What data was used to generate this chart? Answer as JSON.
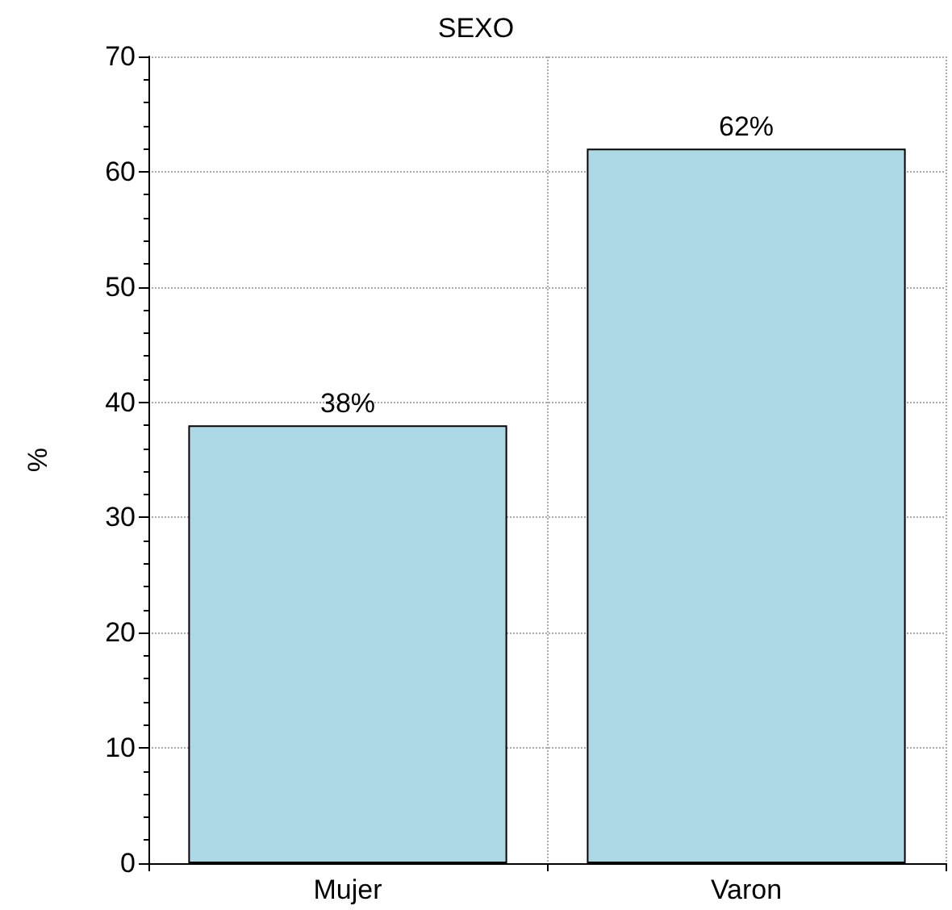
{
  "chart_data": {
    "type": "bar",
    "title": "SEXO",
    "ylabel": "%",
    "categories": [
      "Mujer",
      "Varon"
    ],
    "values": [
      38,
      62
    ],
    "value_labels": [
      "38%",
      "62%"
    ],
    "color": "#add8e6",
    "ylim": [
      0,
      70
    ],
    "yticks": [
      0,
      10,
      20,
      30,
      40,
      50,
      60,
      70
    ],
    "grid": true
  }
}
